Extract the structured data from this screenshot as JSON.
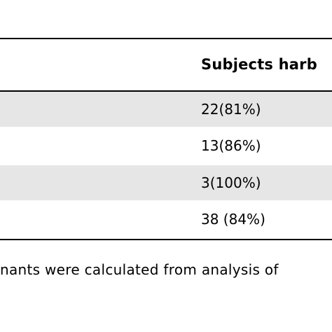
{
  "table": {
    "column_header": "Subjects harb",
    "rows": [
      {
        "value": "22(81%)",
        "shaded": true
      },
      {
        "value": "13(86%)",
        "shaded": false
      },
      {
        "value": "3(100%)",
        "shaded": true
      },
      {
        "value": "38 (84%)",
        "shaded": false
      }
    ],
    "row_shade_color": "#e6e6e6",
    "rule_color": "#000000"
  },
  "footnote": "nants were calculated from analysis of"
}
